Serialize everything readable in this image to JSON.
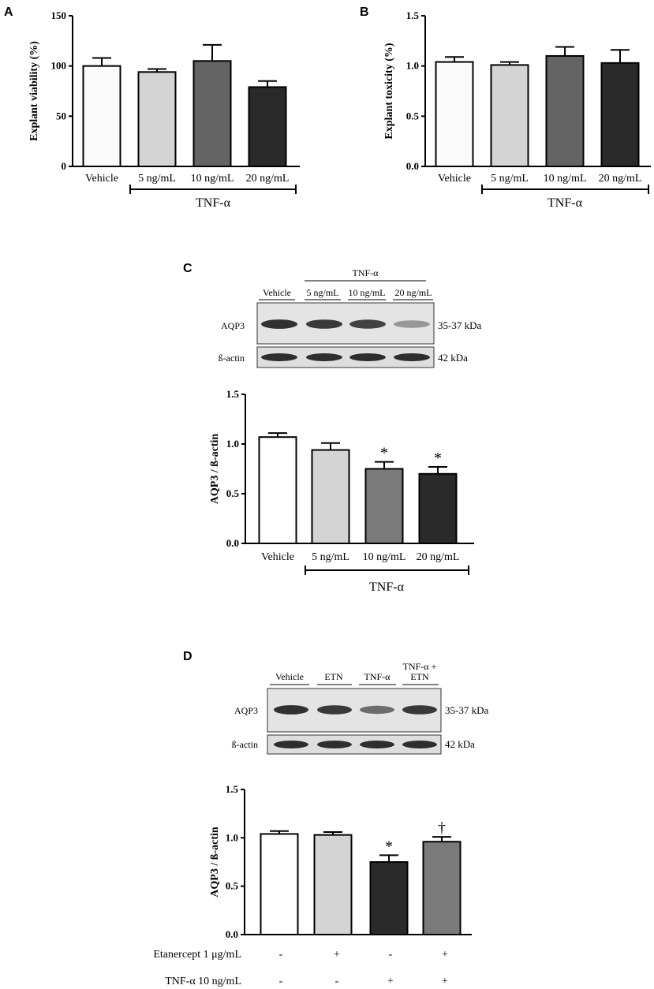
{
  "panels": {
    "A": "A",
    "B": "B",
    "C": "C",
    "D": "D"
  },
  "blots": {
    "C": {
      "group_label": "TNF-α",
      "lanes": [
        "Vehicle",
        "5 ng/mL",
        "10 ng/mL",
        "20 ng/mL"
      ],
      "rows": [
        "AQP3",
        "ß-actin"
      ],
      "kda": [
        "35-37 kDa",
        "42 kDa"
      ],
      "aqp3_intensity": [
        0.95,
        0.9,
        0.85,
        0.35
      ]
    },
    "D": {
      "lanes": [
        "Vehicle",
        "ETN",
        "TNF-α",
        "TNF-α +",
        "ETN"
      ],
      "rows": [
        "AQP3",
        "ß-actin"
      ],
      "kda": [
        "35-37 kDa",
        "42 kDa"
      ],
      "aqp3_intensity": [
        0.95,
        0.9,
        0.6,
        0.9
      ]
    }
  },
  "conditions_D": {
    "rows": [
      "Etanercept 1 μg/mL",
      "TNF-α 10 ng/mL"
    ],
    "etanercept": [
      "-",
      "+",
      "-",
      "+"
    ],
    "tnf": [
      "-",
      "-",
      "+",
      "+"
    ]
  },
  "chart_data": [
    {
      "id": "A",
      "type": "bar",
      "ylabel": "Explant viability (%)",
      "categories": [
        "Vehicle",
        "5 ng/mL",
        "10 ng/mL",
        "20 ng/mL"
      ],
      "values": [
        100,
        94,
        105,
        79
      ],
      "errors": [
        8,
        3,
        16,
        6
      ],
      "yticks": [
        "0",
        "50",
        "100",
        "150"
      ],
      "ylim": [
        0,
        150
      ],
      "group_label": "TNF-α",
      "colors": [
        "#fafafa",
        "#d4d4d4",
        "#646464",
        "#2a2a2a"
      ],
      "annotations": [
        "",
        "",
        "",
        ""
      ]
    },
    {
      "id": "B",
      "type": "bar",
      "ylabel": "Explant toxicity (%)",
      "categories": [
        "Vehicle",
        "5 ng/mL",
        "10 ng/mL",
        "20 ng/mL"
      ],
      "values": [
        1.04,
        1.01,
        1.1,
        1.03
      ],
      "errors": [
        0.05,
        0.03,
        0.09,
        0.13
      ],
      "yticks": [
        "0.0",
        "0.5",
        "1.0",
        "1.5"
      ],
      "ylim": [
        0,
        1.5
      ],
      "group_label": "TNF-α",
      "colors": [
        "#fafafa",
        "#d4d4d4",
        "#646464",
        "#2a2a2a"
      ],
      "annotations": [
        "",
        "",
        "",
        ""
      ]
    },
    {
      "id": "C",
      "type": "bar",
      "ylabel": "AQP3 / ß-actin",
      "categories": [
        "Vehicle",
        "5 ng/mL",
        "10 ng/mL",
        "20 ng/mL"
      ],
      "values": [
        1.07,
        0.94,
        0.75,
        0.7
      ],
      "errors": [
        0.04,
        0.07,
        0.07,
        0.07
      ],
      "yticks": [
        "0.0",
        "0.5",
        "1.0",
        "1.5"
      ],
      "ylim": [
        0,
        1.5
      ],
      "group_label": "TNF-α",
      "colors": [
        "#ffffff",
        "#d4d4d4",
        "#7a7a7a",
        "#2a2a2a"
      ],
      "annotations": [
        "",
        "",
        "*",
        "*"
      ]
    },
    {
      "id": "D",
      "type": "bar",
      "ylabel": "AQP3 / ß-actin",
      "categories": [
        "",
        "",
        "",
        ""
      ],
      "values": [
        1.04,
        1.03,
        0.75,
        0.96
      ],
      "errors": [
        0.03,
        0.03,
        0.07,
        0.05
      ],
      "yticks": [
        "0.0",
        "0.5",
        "1.0",
        "1.5"
      ],
      "ylim": [
        0,
        1.5
      ],
      "colors": [
        "#ffffff",
        "#d4d4d4",
        "#2a2a2a",
        "#7a7a7a"
      ],
      "annotations": [
        "",
        "",
        "*",
        "†"
      ]
    }
  ]
}
